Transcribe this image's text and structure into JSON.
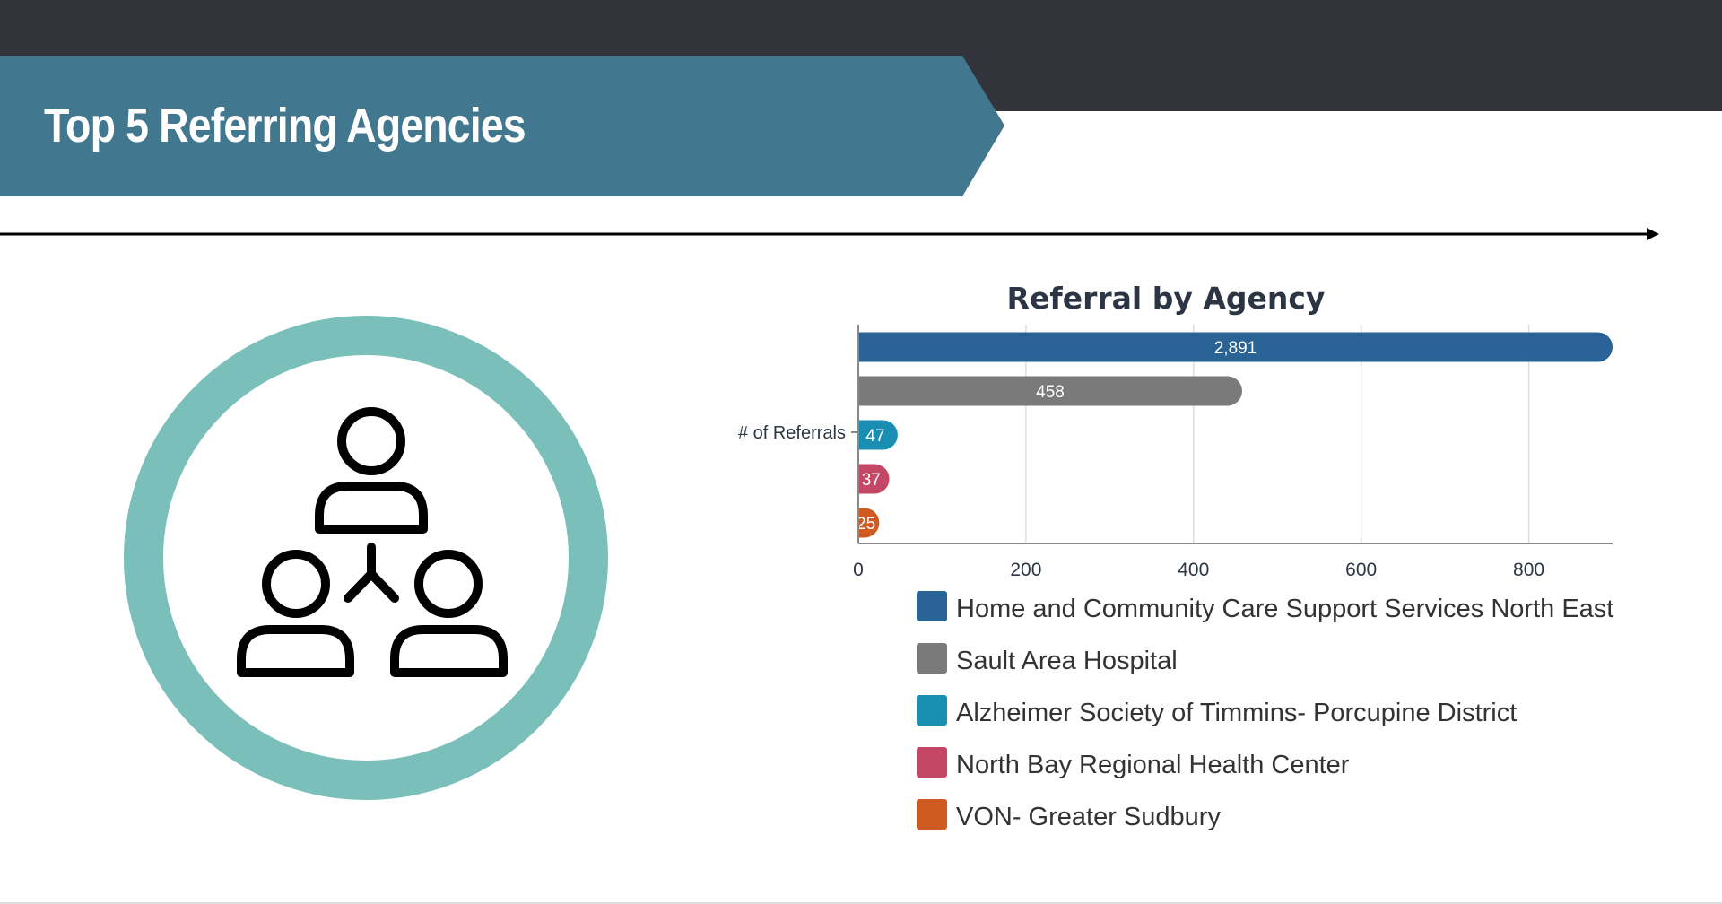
{
  "slide": {
    "title": "Top 5 Referring Agencies"
  },
  "colors": {
    "top_bar": "#33333c",
    "banner": "#41778f",
    "circle_ring": "#7abfba",
    "icon_stroke": "#000000"
  },
  "icon": {
    "name": "people-network-icon"
  },
  "chart_data": {
    "type": "bar",
    "orientation": "horizontal",
    "title": "Referral by Agency",
    "category_label": "# of Referrals",
    "xlim": [
      0,
      900
    ],
    "xticks": [
      0,
      200,
      400,
      600,
      800
    ],
    "xtick_labels": [
      "0",
      "200",
      "400",
      "600",
      "800"
    ],
    "grid": true,
    "legend_position": "bottom",
    "series": [
      {
        "name": "Home and Community Care Support Services North East",
        "value": 2891,
        "label": "2,891",
        "color": "#2a6496"
      },
      {
        "name": "Sault Area Hospital",
        "value": 458,
        "label": "458",
        "color": "#7a7a7a"
      },
      {
        "name": "Alzheimer Society of Timmins- Porcupine District",
        "value": 47,
        "label": "47",
        "color": "#1a8db3"
      },
      {
        "name": "North Bay Regional Health Center",
        "value": 37,
        "label": "37",
        "color": "#c44866"
      },
      {
        "name": "VON- Greater Sudbury",
        "value": 25,
        "label": "25",
        "color": "#cf5b22"
      }
    ]
  }
}
